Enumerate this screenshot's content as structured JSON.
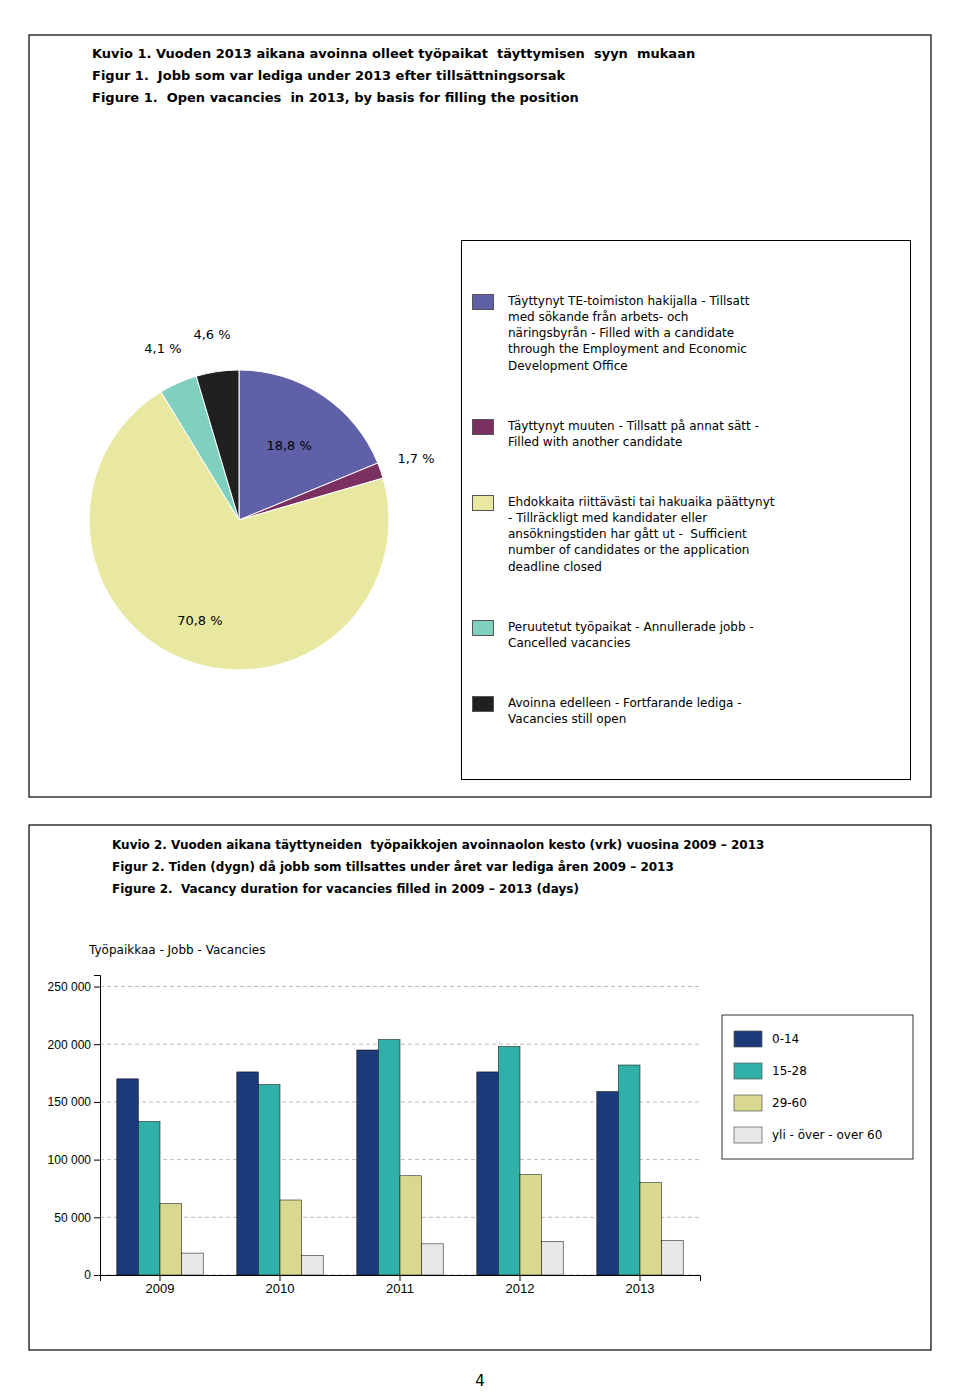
{
  "chart_data": [
    {
      "type": "pie",
      "title": [
        "Kuvio 1. Vuoden 2013 aikana avoinna olleet työpaikat  täyttymisen  syyn  mukaan",
        "Figur 1.  Jobb som var lediga under 2013 efter tillsättningsorsak",
        "Figure 1.  Open vacancies  in 2013, by basis for filling the position"
      ],
      "categories": [
        "Täyttynyt TE-toimiston hakijalla - Tillsatt\nmed sökande från arbets- och\nnäringsbyrån - Filled with a candidate\nthrough the Employment and Economic\nDevelopment Office",
        "Täyttynyt muuten - Tillsatt på annat sätt -\nFilled with another candidate",
        "Ehdokkaita riittävästi tai hakuaika päättynyt\n- Tillräckligt med kandidater eller\nansökningstiden har gått ut -  Sufficient\nnumber of candidates or the application\ndeadline closed",
        "Peruutetut työpaikat - Annullerade jobb -\nCancelled vacancies",
        "Avoinna edelleen - Fortfarande lediga -\nVacancies still open"
      ],
      "values": [
        18.8,
        1.7,
        70.8,
        4.1,
        4.6
      ],
      "value_labels": [
        "18,8 %",
        "1,7 %",
        "70,8 %",
        "4,1 %",
        "4,6 %"
      ],
      "colors": [
        "#6060a8",
        "#7a3060",
        "#e8e8a0",
        "#80d0c0",
        "#202020"
      ],
      "data_labels": true,
      "legend": "right"
    },
    {
      "type": "bar",
      "title": [
        "Kuvio 2. Vuoden aikana täyttyneiden  työpaikkojen avoinnaolon kesto (vrk) vuosina 2009 – 2013",
        "Figur 2. Tiden (dygn) då jobb som tillsattes under året var lediga åren 2009 – 2013",
        "Figure 2.  Vacancy duration for vacancies filled in 2009 – 2013 (days)"
      ],
      "ylabel": "Työpaikkaa - Jobb - Vacancies",
      "categories": [
        "2009",
        "2010",
        "2011",
        "2012",
        "2013"
      ],
      "series": [
        {
          "name": "0-14",
          "color": "#1a3a7a",
          "values": [
            170000,
            176000,
            195000,
            176000,
            159000
          ]
        },
        {
          "name": "15-28",
          "color": "#30b0a8",
          "values": [
            133000,
            165000,
            204000,
            198000,
            182000
          ]
        },
        {
          "name": "29-60",
          "color": "#d8d890",
          "values": [
            62000,
            65000,
            86000,
            87000,
            80000
          ]
        },
        {
          "name": "yli - över - over 60",
          "color": "#e8e8e8",
          "values": [
            19000,
            17000,
            27000,
            29000,
            30000
          ]
        }
      ],
      "ylim": [
        0,
        260000
      ],
      "yticks": [
        0,
        {
          "value": 50000,
          "label": "50 000"
        },
        {
          "value": 100000,
          "label": "100 000"
        },
        {
          "value": 150000,
          "label": "150 000"
        },
        {
          "value": 200000,
          "label": "200 000"
        },
        {
          "value": 250000,
          "label": "250 000"
        }
      ],
      "grid": true,
      "legend": "right"
    }
  ],
  "page_number": "4"
}
